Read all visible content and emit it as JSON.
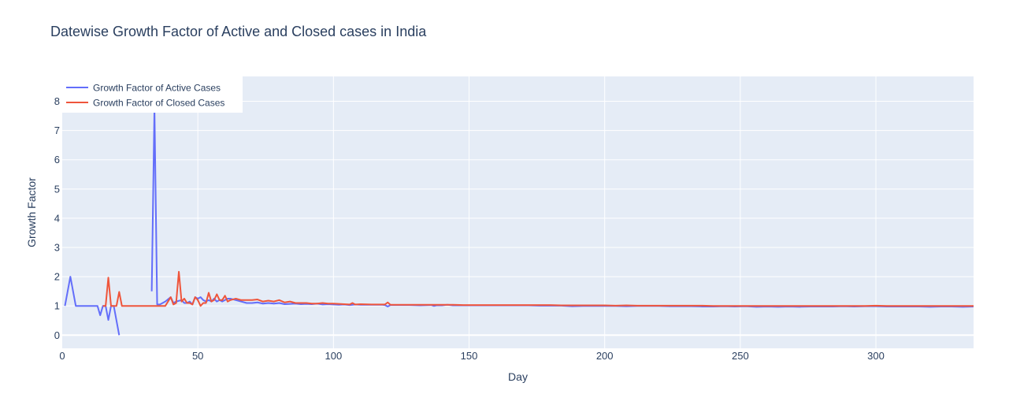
{
  "chart_data": {
    "type": "line",
    "title": "Datewise Growth Factor of Active and Closed cases in India",
    "xlabel": "Day",
    "ylabel": "Growth Factor",
    "xlim": [
      0,
      336
    ],
    "ylim": [
      -0.45,
      8.85
    ],
    "xticks": [
      0,
      50,
      100,
      150,
      200,
      250,
      300
    ],
    "yticks": [
      0,
      1,
      2,
      3,
      4,
      5,
      6,
      7,
      8
    ],
    "grid": true,
    "legend_position": "top-left",
    "background_color": "#e5ecf6",
    "series": [
      {
        "name": "Growth Factor of Active Cases",
        "color": "#636efa",
        "segments": [
          [
            [
              1,
              1
            ],
            [
              3,
              2
            ],
            [
              5,
              1
            ],
            [
              13,
              1
            ],
            [
              14,
              0.68
            ],
            [
              15,
              1
            ],
            [
              16,
              1
            ],
            [
              17,
              0.52
            ],
            [
              18,
              1
            ],
            [
              19,
              1
            ],
            [
              21,
              0
            ]
          ],
          [
            [
              33,
              1.5
            ],
            [
              34,
              7.8
            ],
            [
              35,
              1.05
            ],
            [
              36,
              1.05
            ],
            [
              38,
              1.15
            ],
            [
              40,
              1.3
            ],
            [
              41,
              1.1
            ],
            [
              42,
              1.15
            ],
            [
              44,
              1.2
            ],
            [
              45,
              1.1
            ],
            [
              46,
              1.1
            ],
            [
              47,
              1.15
            ],
            [
              48,
              1.05
            ],
            [
              49,
              1.3
            ],
            [
              50,
              1.25
            ],
            [
              51,
              1.3
            ],
            [
              52,
              1.2
            ],
            [
              53,
              1.15
            ],
            [
              54,
              1.2
            ],
            [
              55,
              1.15
            ],
            [
              56,
              1.25
            ],
            [
              57,
              1.15
            ],
            [
              58,
              1.2
            ],
            [
              59,
              1.15
            ],
            [
              60,
              1.2
            ],
            [
              61,
              1.25
            ],
            [
              62,
              1.25
            ],
            [
              64,
              1.2
            ],
            [
              66,
              1.15
            ],
            [
              68,
              1.1
            ],
            [
              70,
              1.1
            ],
            [
              72,
              1.12
            ],
            [
              74,
              1.08
            ],
            [
              76,
              1.1
            ],
            [
              78,
              1.08
            ],
            [
              80,
              1.1
            ],
            [
              82,
              1.06
            ],
            [
              84,
              1.07
            ],
            [
              86,
              1.08
            ],
            [
              88,
              1.06
            ],
            [
              90,
              1.07
            ],
            [
              92,
              1.06
            ],
            [
              94,
              1.08
            ],
            [
              96,
              1.05
            ],
            [
              98,
              1.06
            ],
            [
              100,
              1.05
            ],
            [
              102,
              1.04
            ],
            [
              104,
              1.05
            ],
            [
              106,
              1.03
            ],
            [
              108,
              1.05
            ],
            [
              110,
              1.04
            ],
            [
              114,
              1.04
            ],
            [
              118,
              1.04
            ],
            [
              119,
              1.03
            ],
            [
              120,
              0.98
            ],
            [
              121,
              1.03
            ],
            [
              124,
              1.03
            ],
            [
              128,
              1.03
            ],
            [
              132,
              1.02
            ],
            [
              136,
              1.03
            ],
            [
              137,
              1.0
            ],
            [
              138,
              1.02
            ],
            [
              140,
              1.02
            ],
            [
              142,
              1.04
            ],
            [
              144,
              1.02
            ],
            [
              148,
              1.02
            ],
            [
              152,
              1.02
            ],
            [
              156,
              1.02
            ],
            [
              160,
              1.02
            ],
            [
              164,
              1.02
            ],
            [
              168,
              1.02
            ],
            [
              172,
              1.02
            ],
            [
              176,
              1.01
            ],
            [
              180,
              1.01
            ],
            [
              184,
              1.01
            ],
            [
              188,
              0.99
            ],
            [
              192,
              1.0
            ],
            [
              196,
              1.0
            ],
            [
              200,
              1.0
            ],
            [
              204,
              1.0
            ],
            [
              208,
              0.99
            ],
            [
              212,
              1.0
            ],
            [
              216,
              1.0
            ],
            [
              220,
              1.0
            ],
            [
              224,
              0.99
            ],
            [
              228,
              0.99
            ],
            [
              232,
              0.99
            ],
            [
              236,
              0.98
            ],
            [
              240,
              0.98
            ],
            [
              244,
              0.99
            ],
            [
              248,
              0.98
            ],
            [
              252,
              0.99
            ],
            [
              256,
              0.97
            ],
            [
              260,
              0.98
            ],
            [
              264,
              0.97
            ],
            [
              268,
              0.98
            ],
            [
              272,
              0.97
            ],
            [
              276,
              0.98
            ],
            [
              280,
              0.98
            ],
            [
              284,
              0.98
            ],
            [
              288,
              0.99
            ],
            [
              292,
              0.98
            ],
            [
              296,
              0.99
            ],
            [
              300,
              0.99
            ],
            [
              304,
              0.98
            ],
            [
              308,
              0.98
            ],
            [
              312,
              0.98
            ],
            [
              316,
              0.98
            ],
            [
              320,
              0.97
            ],
            [
              324,
              0.98
            ],
            [
              328,
              0.98
            ],
            [
              332,
              0.97
            ],
            [
              336,
              0.98
            ]
          ]
        ]
      },
      {
        "name": "Growth Factor of Closed Cases",
        "color": "#ef553b",
        "segments": [
          [
            [
              15,
              1
            ],
            [
              16,
              1
            ],
            [
              17,
              1.97
            ],
            [
              18,
              1
            ],
            [
              19,
              1
            ],
            [
              20,
              1
            ],
            [
              21,
              1.48
            ],
            [
              22,
              1
            ],
            [
              30,
              1
            ],
            [
              35,
              1
            ],
            [
              38,
              1
            ],
            [
              40,
              1.3
            ],
            [
              41,
              1.05
            ],
            [
              42,
              1.1
            ],
            [
              43,
              2.17
            ],
            [
              44,
              1.15
            ],
            [
              45,
              1.25
            ],
            [
              46,
              1.1
            ],
            [
              47,
              1.1
            ],
            [
              48,
              1.05
            ],
            [
              49,
              1.3
            ],
            [
              50,
              1.2
            ],
            [
              51,
              1.0
            ],
            [
              52,
              1.1
            ],
            [
              53,
              1.1
            ],
            [
              54,
              1.45
            ],
            [
              55,
              1.15
            ],
            [
              56,
              1.2
            ],
            [
              57,
              1.4
            ],
            [
              58,
              1.2
            ],
            [
              59,
              1.2
            ],
            [
              60,
              1.35
            ],
            [
              61,
              1.15
            ],
            [
              62,
              1.2
            ],
            [
              64,
              1.25
            ],
            [
              66,
              1.2
            ],
            [
              68,
              1.2
            ],
            [
              70,
              1.2
            ],
            [
              72,
              1.22
            ],
            [
              74,
              1.15
            ],
            [
              76,
              1.18
            ],
            [
              78,
              1.15
            ],
            [
              80,
              1.2
            ],
            [
              82,
              1.12
            ],
            [
              84,
              1.15
            ],
            [
              86,
              1.1
            ],
            [
              88,
              1.1
            ],
            [
              90,
              1.1
            ],
            [
              92,
              1.08
            ],
            [
              94,
              1.08
            ],
            [
              96,
              1.1
            ],
            [
              98,
              1.08
            ],
            [
              100,
              1.08
            ],
            [
              102,
              1.07
            ],
            [
              104,
              1.06
            ],
            [
              106,
              1.05
            ],
            [
              107,
              1.1
            ],
            [
              108,
              1.05
            ],
            [
              110,
              1.06
            ],
            [
              114,
              1.05
            ],
            [
              118,
              1.05
            ],
            [
              119,
              1.05
            ],
            [
              120,
              1.12
            ],
            [
              121,
              1.04
            ],
            [
              124,
              1.04
            ],
            [
              128,
              1.04
            ],
            [
              132,
              1.04
            ],
            [
              136,
              1.04
            ],
            [
              140,
              1.04
            ],
            [
              144,
              1.04
            ],
            [
              148,
              1.03
            ],
            [
              152,
              1.03
            ],
            [
              156,
              1.03
            ],
            [
              160,
              1.03
            ],
            [
              164,
              1.03
            ],
            [
              168,
              1.03
            ],
            [
              172,
              1.03
            ],
            [
              176,
              1.03
            ],
            [
              180,
              1.03
            ],
            [
              184,
              1.02
            ],
            [
              188,
              1.02
            ],
            [
              192,
              1.02
            ],
            [
              196,
              1.02
            ],
            [
              200,
              1.02
            ],
            [
              204,
              1.01
            ],
            [
              208,
              1.02
            ],
            [
              212,
              1.01
            ],
            [
              216,
              1.01
            ],
            [
              220,
              1.01
            ],
            [
              224,
              1.01
            ],
            [
              228,
              1.01
            ],
            [
              232,
              1.01
            ],
            [
              236,
              1.01
            ],
            [
              240,
              1.0
            ],
            [
              244,
              1.0
            ],
            [
              248,
              1.0
            ],
            [
              252,
              1.0
            ],
            [
              256,
              1.0
            ],
            [
              260,
              1.0
            ],
            [
              264,
              1.0
            ],
            [
              268,
              1.0
            ],
            [
              272,
              1.0
            ],
            [
              276,
              1.0
            ],
            [
              280,
              1.0
            ],
            [
              284,
              1.0
            ],
            [
              288,
              1.0
            ],
            [
              292,
              1.0
            ],
            [
              296,
              1.0
            ],
            [
              300,
              1.01
            ],
            [
              304,
              1.0
            ],
            [
              308,
              1.0
            ],
            [
              312,
              1.0
            ],
            [
              316,
              1.0
            ],
            [
              320,
              1.0
            ],
            [
              324,
              1.0
            ],
            [
              328,
              1.0
            ],
            [
              332,
              1.0
            ],
            [
              336,
              1.0
            ]
          ]
        ]
      }
    ]
  }
}
